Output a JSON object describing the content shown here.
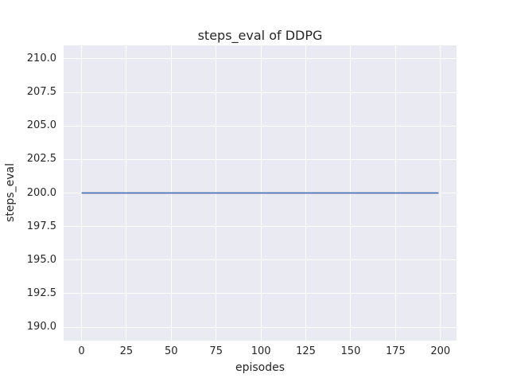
{
  "figure": {
    "background": "#ffffff",
    "axes_background": "#eaeaf2",
    "grid_color": "#ffffff",
    "text_color": "#262626"
  },
  "chart_data": {
    "type": "line",
    "title": "steps_eval of DDPG",
    "xlabel": "episodes",
    "ylabel": "steps_eval",
    "grid": true,
    "legend": false,
    "xlim": [
      -9.95,
      208.95
    ],
    "ylim": [
      189,
      211
    ],
    "x_ticks": [
      0,
      25,
      50,
      75,
      100,
      125,
      150,
      175,
      200
    ],
    "x_tick_labels": [
      "0",
      "25",
      "50",
      "75",
      "100",
      "125",
      "150",
      "175",
      "200"
    ],
    "y_ticks": [
      190.0,
      192.5,
      195.0,
      197.5,
      200.0,
      202.5,
      205.0,
      207.5,
      210.0
    ],
    "y_tick_labels": [
      "190.0",
      "192.5",
      "195.0",
      "197.5",
      "200.0",
      "202.5",
      "205.0",
      "207.5",
      "210.0"
    ],
    "series": [
      {
        "name": "steps_eval",
        "color": "#4c72b0",
        "line_width": 1.8,
        "x": [
          0,
          199
        ],
        "y": [
          200,
          200
        ]
      }
    ]
  }
}
